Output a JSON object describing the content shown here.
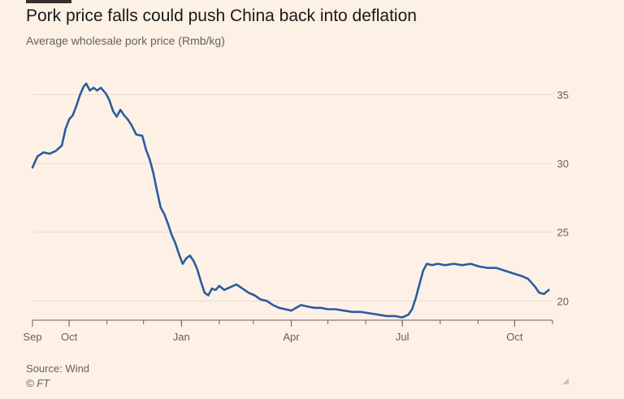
{
  "header": {
    "title": "Pork price falls could push China back into deflation",
    "subtitle": "Average wholesale pork price (Rmb/kg)"
  },
  "footer": {
    "source": "Source: Wind",
    "copyright": "© FT"
  },
  "colors": {
    "line": "#2b5c9e",
    "grid": "#e7dbd0",
    "axis": "#66605c",
    "background": "#fdf1e6"
  },
  "chart_data": {
    "type": "line",
    "title": "Pork price falls could push China back into deflation",
    "subtitle": "Average wholesale pork price (Rmb/kg)",
    "xlabel": "",
    "ylabel": "",
    "ylim": [
      18.6,
      36.8
    ],
    "xlim": [
      "2022-09-01",
      "2023-11-01"
    ],
    "y_ticks": [
      20,
      25,
      30,
      35
    ],
    "x_ticks": [
      {
        "label": "Sep",
        "date": "2022-09-01"
      },
      {
        "label": "Oct",
        "date": "2022-10-01"
      },
      {
        "label": "Jan",
        "date": "2023-01-01"
      },
      {
        "label": "Apr",
        "date": "2023-04-01"
      },
      {
        "label": "Jul",
        "date": "2023-07-01"
      },
      {
        "label": "Oct",
        "date": "2023-10-01"
      }
    ],
    "y_axis_position": "right",
    "grid": true,
    "series": [
      {
        "points": [
          [
            "2022-09-01",
            29.7
          ],
          [
            "2022-09-05",
            30.5
          ],
          [
            "2022-09-10",
            30.8
          ],
          [
            "2022-09-15",
            30.7
          ],
          [
            "2022-09-20",
            30.9
          ],
          [
            "2022-09-25",
            31.3
          ],
          [
            "2022-09-28",
            32.5
          ],
          [
            "2022-10-01",
            33.2
          ],
          [
            "2022-10-04",
            33.5
          ],
          [
            "2022-10-07",
            34.2
          ],
          [
            "2022-10-10",
            35.0
          ],
          [
            "2022-10-13",
            35.6
          ],
          [
            "2022-10-15",
            35.8
          ],
          [
            "2022-10-18",
            35.3
          ],
          [
            "2022-10-21",
            35.5
          ],
          [
            "2022-10-24",
            35.3
          ],
          [
            "2022-10-27",
            35.5
          ],
          [
            "2022-10-31",
            35.1
          ],
          [
            "2022-11-03",
            34.6
          ],
          [
            "2022-11-06",
            33.8
          ],
          [
            "2022-11-09",
            33.4
          ],
          [
            "2022-11-12",
            33.9
          ],
          [
            "2022-11-15",
            33.5
          ],
          [
            "2022-11-18",
            33.2
          ],
          [
            "2022-11-21",
            32.8
          ],
          [
            "2022-11-25",
            32.1
          ],
          [
            "2022-11-30",
            32.0
          ],
          [
            "2022-12-03",
            31.0
          ],
          [
            "2022-12-06",
            30.3
          ],
          [
            "2022-12-09",
            29.3
          ],
          [
            "2022-12-12",
            28.0
          ],
          [
            "2022-12-15",
            26.8
          ],
          [
            "2022-12-18",
            26.3
          ],
          [
            "2022-12-21",
            25.6
          ],
          [
            "2022-12-24",
            24.8
          ],
          [
            "2022-12-27",
            24.2
          ],
          [
            "2022-12-30",
            23.4
          ],
          [
            "2023-01-02",
            22.7
          ],
          [
            "2023-01-05",
            23.1
          ],
          [
            "2023-01-08",
            23.3
          ],
          [
            "2023-01-11",
            22.9
          ],
          [
            "2023-01-14",
            22.3
          ],
          [
            "2023-01-17",
            21.4
          ],
          [
            "2023-01-20",
            20.6
          ],
          [
            "2023-01-23",
            20.4
          ],
          [
            "2023-01-26",
            20.9
          ],
          [
            "2023-01-29",
            20.8
          ],
          [
            "2023-02-01",
            21.1
          ],
          [
            "2023-02-05",
            20.8
          ],
          [
            "2023-02-10",
            21.0
          ],
          [
            "2023-02-15",
            21.2
          ],
          [
            "2023-02-20",
            20.9
          ],
          [
            "2023-02-25",
            20.6
          ],
          [
            "2023-03-02",
            20.4
          ],
          [
            "2023-03-07",
            20.1
          ],
          [
            "2023-03-12",
            20.0
          ],
          [
            "2023-03-17",
            19.7
          ],
          [
            "2023-03-22",
            19.5
          ],
          [
            "2023-03-27",
            19.4
          ],
          [
            "2023-04-01",
            19.3
          ],
          [
            "2023-04-05",
            19.5
          ],
          [
            "2023-04-09",
            19.7
          ],
          [
            "2023-04-14",
            19.6
          ],
          [
            "2023-04-20",
            19.5
          ],
          [
            "2023-04-25",
            19.5
          ],
          [
            "2023-05-01",
            19.4
          ],
          [
            "2023-05-07",
            19.4
          ],
          [
            "2023-05-14",
            19.3
          ],
          [
            "2023-05-21",
            19.2
          ],
          [
            "2023-05-28",
            19.2
          ],
          [
            "2023-06-04",
            19.1
          ],
          [
            "2023-06-11",
            19.0
          ],
          [
            "2023-06-18",
            18.9
          ],
          [
            "2023-06-25",
            18.9
          ],
          [
            "2023-07-01",
            18.8
          ],
          [
            "2023-07-06",
            19.0
          ],
          [
            "2023-07-09",
            19.4
          ],
          [
            "2023-07-12",
            20.2
          ],
          [
            "2023-07-15",
            21.2
          ],
          [
            "2023-07-18",
            22.2
          ],
          [
            "2023-07-21",
            22.7
          ],
          [
            "2023-07-25",
            22.6
          ],
          [
            "2023-07-30",
            22.7
          ],
          [
            "2023-08-05",
            22.6
          ],
          [
            "2023-08-12",
            22.7
          ],
          [
            "2023-08-19",
            22.6
          ],
          [
            "2023-08-26",
            22.7
          ],
          [
            "2023-09-02",
            22.5
          ],
          [
            "2023-09-09",
            22.4
          ],
          [
            "2023-09-16",
            22.4
          ],
          [
            "2023-09-23",
            22.2
          ],
          [
            "2023-09-30",
            22.0
          ],
          [
            "2023-10-07",
            21.8
          ],
          [
            "2023-10-12",
            21.6
          ],
          [
            "2023-10-15",
            21.3
          ],
          [
            "2023-10-18",
            21.0
          ],
          [
            "2023-10-21",
            20.6
          ],
          [
            "2023-10-25",
            20.5
          ],
          [
            "2023-10-29",
            20.8
          ]
        ]
      }
    ]
  }
}
